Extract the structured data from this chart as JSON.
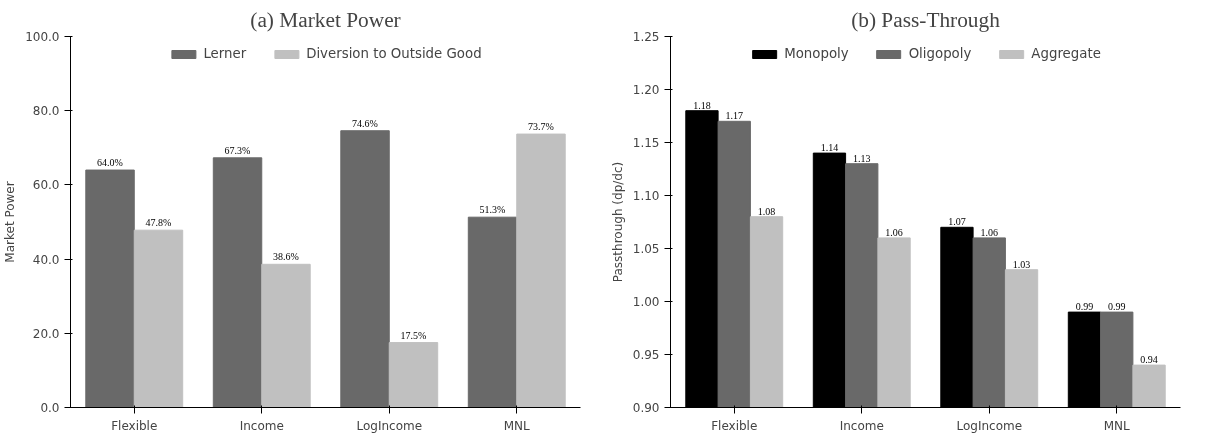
{
  "chart_data": [
    {
      "type": "bar",
      "title": "(a) Market Power",
      "ylabel": "Market Power",
      "categories": [
        "Flexible",
        "Income",
        "LogIncome",
        "MNL"
      ],
      "series": [
        {
          "name": "Lerner",
          "color": "#696969",
          "values": [
            64.0,
            67.3,
            74.6,
            51.3
          ],
          "value_labels": [
            "64.0%",
            "67.3%",
            "74.6%",
            "51.3%"
          ]
        },
        {
          "name": "Diversion to Outside Good",
          "color": "#c0c0c0",
          "values": [
            47.8,
            38.6,
            17.5,
            73.7
          ],
          "value_labels": [
            "47.8%",
            "38.6%",
            "17.5%",
            "73.7%"
          ]
        }
      ],
      "ylim": [
        0,
        100
      ],
      "yticks": [
        {
          "value": 0,
          "label": "0.0"
        },
        {
          "value": 20,
          "label": "20.0"
        },
        {
          "value": 40,
          "label": "40.0"
        },
        {
          "value": 60,
          "label": "60.0"
        },
        {
          "value": 80,
          "label": "80.0"
        },
        {
          "value": 100,
          "label": "100.0"
        }
      ],
      "grid": false,
      "legend": "top"
    },
    {
      "type": "bar",
      "title": "(b) Pass-Through",
      "ylabel": "Passthrough (dp/dc)",
      "categories": [
        "Flexible",
        "Income",
        "LogIncome",
        "MNL"
      ],
      "series": [
        {
          "name": "Monopoly",
          "color": "#000000",
          "values": [
            1.18,
            1.14,
            1.07,
            0.99
          ]
        },
        {
          "name": "Oligopoly",
          "color": "#696969",
          "values": [
            1.17,
            1.13,
            1.06,
            0.99
          ]
        },
        {
          "name": "Aggregate",
          "color": "#c0c0c0",
          "values": [
            1.08,
            1.06,
            1.03,
            0.94
          ]
        }
      ],
      "data_labels": true,
      "ylim": [
        0.9,
        1.25
      ],
      "yticks": [
        {
          "value": 0.9,
          "label": "0.90"
        },
        {
          "value": 0.95,
          "label": "0.95"
        },
        {
          "value": 1.0,
          "label": "1.00"
        },
        {
          "value": 1.05,
          "label": "1.05"
        },
        {
          "value": 1.1,
          "label": "1.10"
        },
        {
          "value": 1.15,
          "label": "1.15"
        },
        {
          "value": 1.2,
          "label": "1.20"
        },
        {
          "value": 1.25,
          "label": "1.25"
        }
      ],
      "grid": false,
      "legend": "top"
    }
  ]
}
